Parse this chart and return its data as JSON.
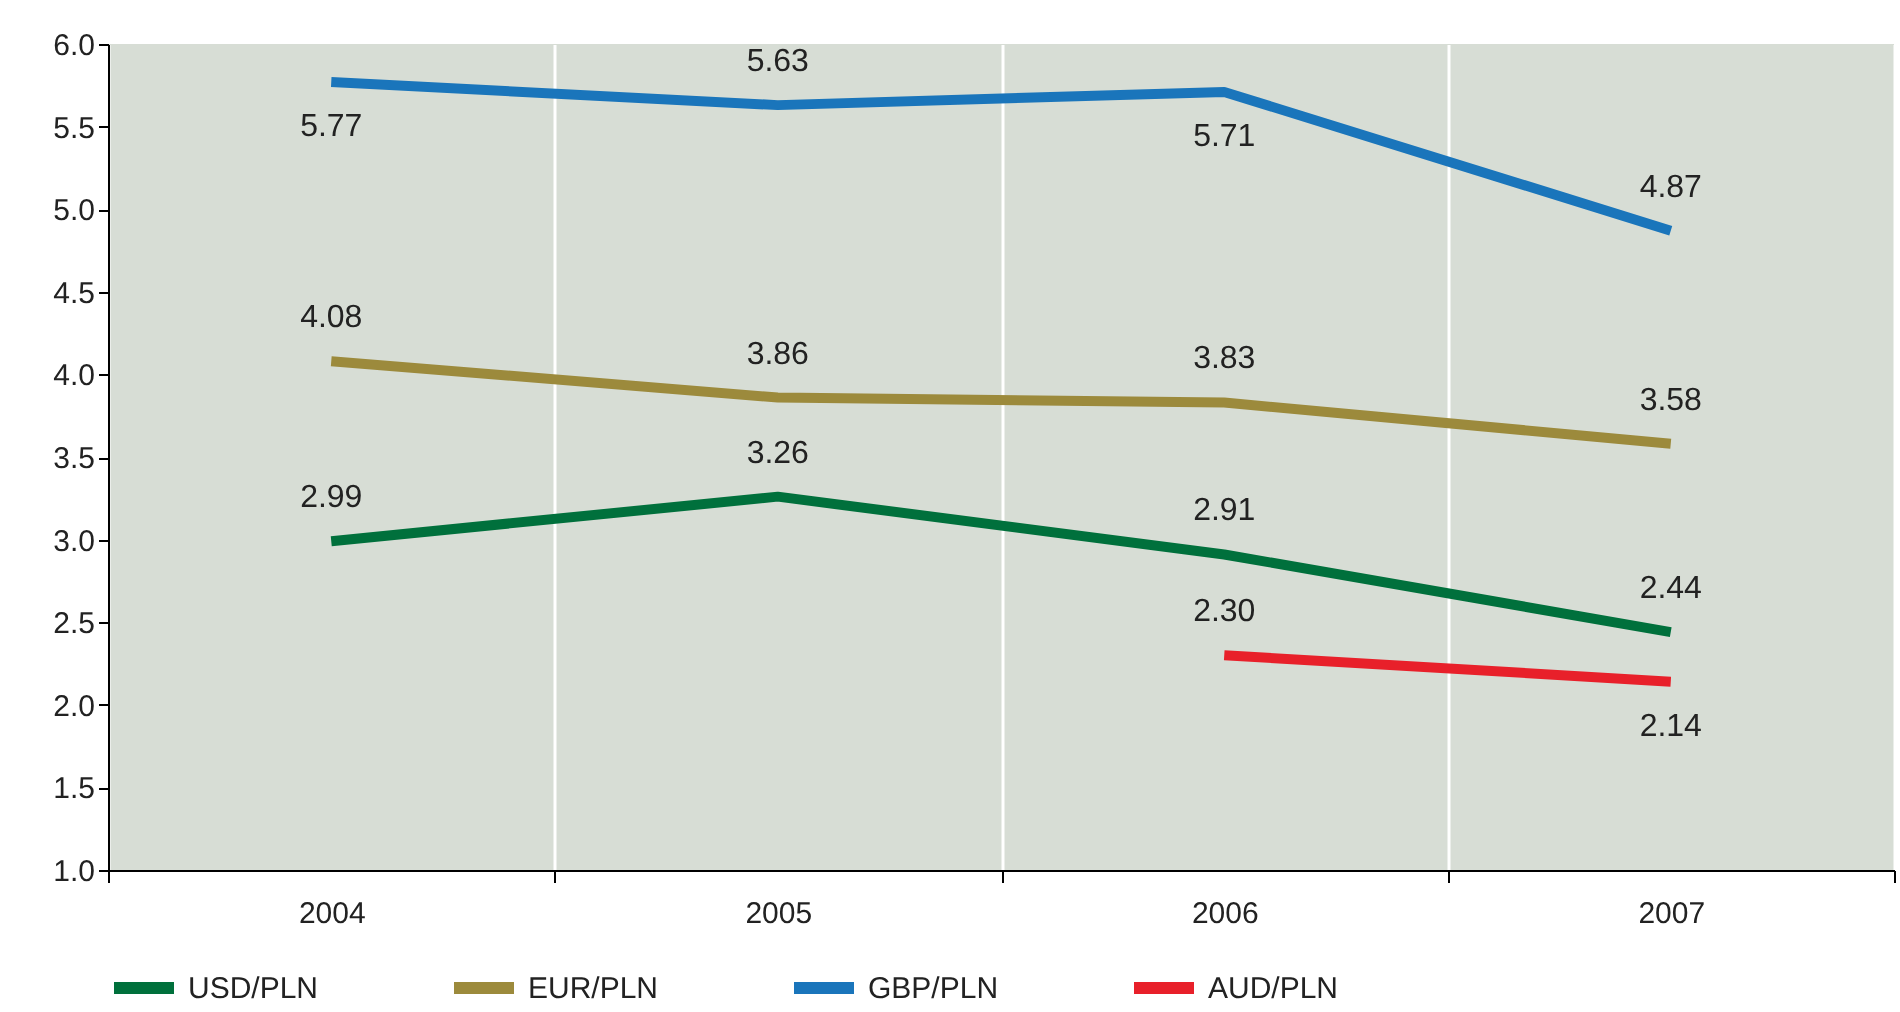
{
  "chart_data": {
    "type": "line",
    "categories": [
      "2004",
      "2005",
      "2006",
      "2007"
    ],
    "series": [
      {
        "name": "USD/PLN",
        "color": "#00703c",
        "values": [
          2.99,
          3.26,
          2.91,
          2.44
        ],
        "value_labels": [
          "2.99",
          "3.26",
          "2.91",
          "2.44"
        ]
      },
      {
        "name": "EUR/PLN",
        "color": "#9c8a3c",
        "values": [
          4.08,
          3.86,
          3.83,
          3.58
        ],
        "value_labels": [
          "4.08",
          "3.86",
          "3.83",
          "3.58"
        ]
      },
      {
        "name": "GBP/PLN",
        "color": "#1a75bb",
        "values": [
          5.77,
          5.63,
          5.71,
          4.87
        ],
        "value_labels": [
          "5.77",
          "5.63",
          "5.71",
          "4.87"
        ]
      },
      {
        "name": "AUD/PLN",
        "color": "#e8202a",
        "values": [
          null,
          null,
          2.3,
          2.14
        ],
        "value_labels": [
          null,
          null,
          "2.30",
          "2.14"
        ]
      }
    ],
    "ylim": [
      1,
      6
    ],
    "yticks": [
      {
        "value": 1,
        "label": "1.0"
      },
      {
        "value": 1.5,
        "label": "1.5"
      },
      {
        "value": 2,
        "label": "2.0"
      },
      {
        "value": 2.5,
        "label": "2.5"
      },
      {
        "value": 3,
        "label": "3.0"
      },
      {
        "value": 3.5,
        "label": "3.5"
      },
      {
        "value": 4,
        "label": "4.0"
      },
      {
        "value": 4.5,
        "label": "4.5"
      },
      {
        "value": 5,
        "label": "5.0"
      },
      {
        "value": 5.5,
        "label": "5.5"
      },
      {
        "value": 6,
        "label": "6.0"
      }
    ],
    "grid": "x",
    "legend": "bottom",
    "marker": "none",
    "line_style": "solid"
  }
}
